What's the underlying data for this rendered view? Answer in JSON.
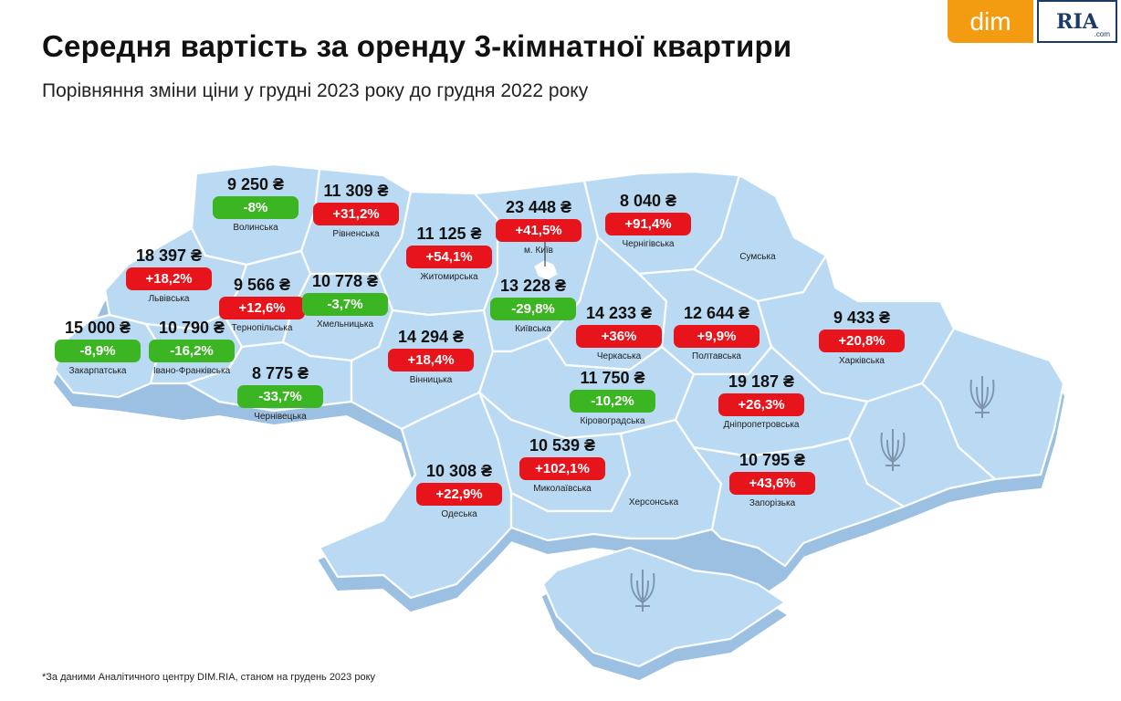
{
  "title": "Середня вартість за оренду 3-кімнатної квартири",
  "subtitle": "Порівняння зміни ціни у грудні 2023 року до грудня 2022 року",
  "logo": {
    "dim": "dim",
    "ria": "RIA",
    "ria_domain": ".com"
  },
  "footnote": "*За даними Аналітичного центру DIM.RIA, станом на грудень 2023 року",
  "colors": {
    "increase": "#e8141b",
    "decrease": "#3cb523",
    "map_fill": "#b9d8f2",
    "map_edge": "#8fb4d6"
  },
  "regions": [
    {
      "name": "Волинська",
      "price": "9 250 ₴",
      "change": "-8%",
      "dir": "down"
    },
    {
      "name": "Рівненська",
      "price": "11 309 ₴",
      "change": "+31,2%",
      "dir": "up"
    },
    {
      "name": "Львівська",
      "price": "18 397 ₴",
      "change": "+18,2%",
      "dir": "up"
    },
    {
      "name": "Тернопільська",
      "price": "9 566 ₴",
      "change": "+12,6%",
      "dir": "up"
    },
    {
      "name": "Хмельницька",
      "price": "10 778 ₴",
      "change": "-3,7%",
      "dir": "down"
    },
    {
      "name": "Закарпатська",
      "price": "15 000 ₴",
      "change": "-8,9%",
      "dir": "down"
    },
    {
      "name": "Івано-Франківська",
      "price": "10 790 ₴",
      "change": "-16,2%",
      "dir": "down"
    },
    {
      "name": "Чернівецька",
      "price": "8 775 ₴",
      "change": "-33,7%",
      "dir": "down"
    },
    {
      "name": "Житомирська",
      "price": "11 125 ₴",
      "change": "+54,1%",
      "dir": "up"
    },
    {
      "name": "Вінницька",
      "price": "14 294 ₴",
      "change": "+18,4%",
      "dir": "up"
    },
    {
      "name": "м. Київ",
      "price": "23 448 ₴",
      "change": "+41,5%",
      "dir": "up"
    },
    {
      "name": "Київська",
      "price": "13 228 ₴",
      "change": "-29,8%",
      "dir": "down"
    },
    {
      "name": "Чернігівська",
      "price": "8 040 ₴",
      "change": "+91,4%",
      "dir": "up"
    },
    {
      "name": "Черкаська",
      "price": "14 233 ₴",
      "change": "+36%",
      "dir": "up"
    },
    {
      "name": "Полтавська",
      "price": "12 644 ₴",
      "change": "+9,9%",
      "dir": "up"
    },
    {
      "name": "Харківська",
      "price": "9 433 ₴",
      "change": "+20,8%",
      "dir": "up"
    },
    {
      "name": "Кіровоградська",
      "price": "11 750 ₴",
      "change": "-10,2%",
      "dir": "down"
    },
    {
      "name": "Дніпропетровська",
      "price": "19 187 ₴",
      "change": "+26,3%",
      "dir": "up"
    },
    {
      "name": "Миколаївська",
      "price": "10 539 ₴",
      "change": "+102,1%",
      "dir": "up"
    },
    {
      "name": "Одеська",
      "price": "10 308 ₴",
      "change": "+22,9%",
      "dir": "up"
    },
    {
      "name": "Запорізька",
      "price": "10 795 ₴",
      "change": "+43,6%",
      "dir": "up"
    }
  ],
  "unlabeled_regions": [
    "Сумська",
    "Херсонська"
  ],
  "occupied_marker_icon": "trident-icon"
}
